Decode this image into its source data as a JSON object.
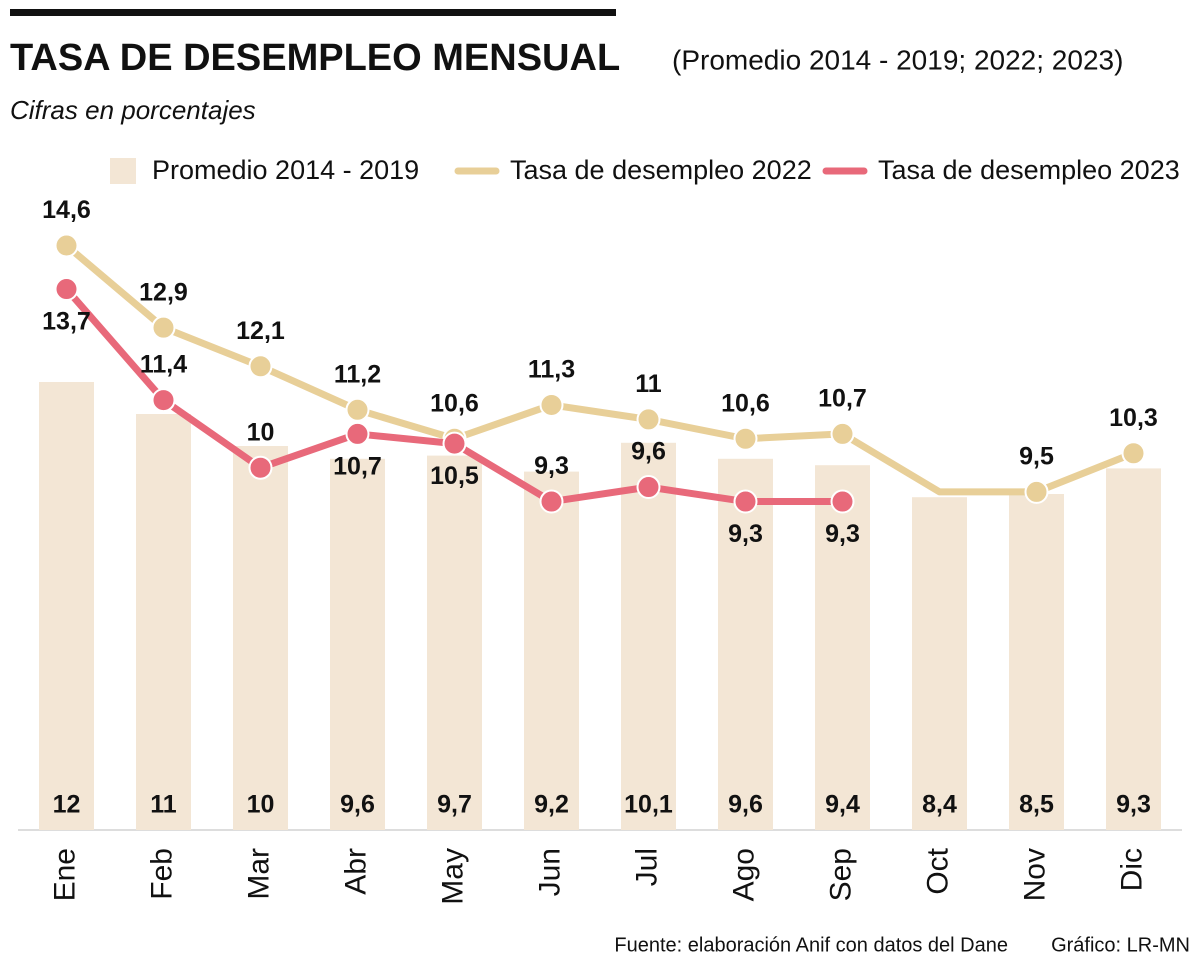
{
  "chart_data": {
    "type": "bar-line",
    "title": "TASA DE DESEMPLEO MENSUAL",
    "subtitle": "(Promedio 2014 - 2019; 2022; 2023)",
    "note": "Cifras en porcentajes",
    "source": "Fuente: elaboración Anif con datos del Dane",
    "credit": "Gráfico: LR-MN",
    "categories": [
      "Ene",
      "Feb",
      "Mar",
      "Abr",
      "May",
      "Jun",
      "Jul",
      "Ago",
      "Sep",
      "Oct",
      "Nov",
      "Dic"
    ],
    "ylim": [
      -2,
      18
    ],
    "y2lim": [
      2.5,
      15.75
    ],
    "series": [
      {
        "name": "Promedio 2014 - 2019",
        "type": "bar",
        "color": "#f3e6d5",
        "values": [
          12,
          11,
          10,
          9.6,
          9.7,
          9.2,
          10.1,
          9.6,
          9.4,
          8.4,
          8.5,
          9.3
        ],
        "value_labels": [
          "12",
          "11",
          "10",
          "9,6",
          "9,7",
          "9,2",
          "10,1",
          "9,6",
          "9,4",
          "8,4",
          "8,5",
          "9,3"
        ]
      },
      {
        "name": "Tasa de desempleo 2022",
        "type": "line",
        "axis": "y2",
        "color": "#e8cf98",
        "values": [
          14.6,
          12.9,
          12.1,
          11.2,
          10.6,
          11.3,
          11,
          10.6,
          10.7,
          9.5,
          9.5,
          10.3
        ],
        "value_labels": [
          "14,6",
          "12,9",
          "12,1",
          "11,2",
          "10,6",
          "11,3",
          "11",
          "10,6",
          "10,7",
          null,
          "9,5",
          "10,3"
        ]
      },
      {
        "name": "Tasa de desempleo 2023",
        "type": "line",
        "axis": "y2",
        "color": "#e8697a",
        "values": [
          13.7,
          11.4,
          10,
          10.7,
          10.5,
          9.3,
          9.6,
          9.3,
          9.3,
          null,
          null,
          null
        ],
        "value_labels": [
          "13,7",
          "11,4",
          "10",
          "10,7",
          "10,5",
          "9,3",
          "9,6",
          "9,3",
          "9,3",
          null,
          null,
          null
        ]
      }
    ]
  }
}
